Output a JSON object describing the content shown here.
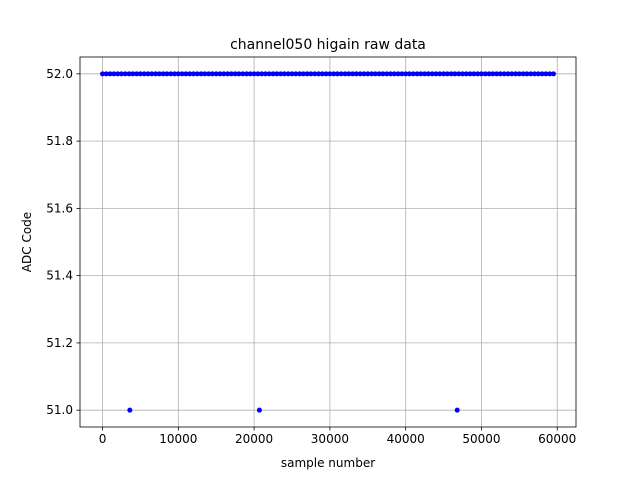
{
  "chart_data": {
    "type": "scatter",
    "title": "channel050 higain raw data",
    "xlabel": "sample number",
    "ylabel": "ADC Code",
    "color": "#0000ff",
    "grid": true,
    "x": [
      0,
      500,
      1000,
      1500,
      2000,
      2500,
      3000,
      3500,
      3600,
      4000,
      4500,
      5000,
      5500,
      6000,
      6500,
      7000,
      7500,
      8000,
      8500,
      9000,
      9500,
      10000,
      10500,
      11000,
      11500,
      12000,
      12500,
      13000,
      13500,
      14000,
      14500,
      15000,
      15500,
      16000,
      16500,
      17000,
      17500,
      18000,
      18500,
      19000,
      19500,
      20000,
      20500,
      20700,
      21000,
      21500,
      22000,
      22500,
      23000,
      23500,
      24000,
      24500,
      25000,
      25500,
      26000,
      26500,
      27000,
      27500,
      28000,
      28500,
      29000,
      29500,
      30000,
      30500,
      31000,
      31500,
      32000,
      32500,
      33000,
      33500,
      34000,
      34500,
      35000,
      35500,
      36000,
      36500,
      37000,
      37500,
      38000,
      38500,
      39000,
      39500,
      40000,
      40500,
      41000,
      41500,
      42000,
      42500,
      43000,
      43500,
      44000,
      44500,
      45000,
      45500,
      46000,
      46500,
      46800,
      47000,
      47500,
      48000,
      48500,
      49000,
      49500,
      50000,
      50500,
      51000,
      51500,
      52000,
      52500,
      53000,
      53500,
      54000,
      54500,
      55000,
      55500,
      56000,
      56500,
      57000,
      57500,
      58000,
      58500,
      59000,
      59500
    ],
    "values": [
      52,
      52,
      52,
      52,
      52,
      52,
      52,
      52,
      51,
      52,
      52,
      52,
      52,
      52,
      52,
      52,
      52,
      52,
      52,
      52,
      52,
      52,
      52,
      52,
      52,
      52,
      52,
      52,
      52,
      52,
      52,
      52,
      52,
      52,
      52,
      52,
      52,
      52,
      52,
      52,
      52,
      52,
      52,
      51,
      52,
      52,
      52,
      52,
      52,
      52,
      52,
      52,
      52,
      52,
      52,
      52,
      52,
      52,
      52,
      52,
      52,
      52,
      52,
      52,
      52,
      52,
      52,
      52,
      52,
      52,
      52,
      52,
      52,
      52,
      52,
      52,
      52,
      52,
      52,
      52,
      52,
      52,
      52,
      52,
      52,
      52,
      52,
      52,
      52,
      52,
      52,
      52,
      52,
      52,
      52,
      52,
      51,
      52,
      52,
      52,
      52,
      52,
      52,
      52,
      52,
      52,
      52,
      52,
      52,
      52,
      52,
      52,
      52,
      52,
      52,
      52,
      52,
      52,
      52,
      52,
      52,
      52,
      52
    ],
    "xlim": [
      -2975,
      62475
    ],
    "xticks": [
      0,
      10000,
      20000,
      30000,
      40000,
      50000,
      60000
    ],
    "ylim": [
      50.95,
      52.05
    ],
    "yticks": [
      {
        "value": 51.0,
        "label": "51.0"
      },
      {
        "value": 51.2,
        "label": "51.2"
      },
      {
        "value": 51.4,
        "label": "51.4"
      },
      {
        "value": 51.6,
        "label": "51.6"
      },
      {
        "value": 51.8,
        "label": "51.8"
      },
      {
        "value": 52.0,
        "label": "52.0"
      }
    ]
  }
}
